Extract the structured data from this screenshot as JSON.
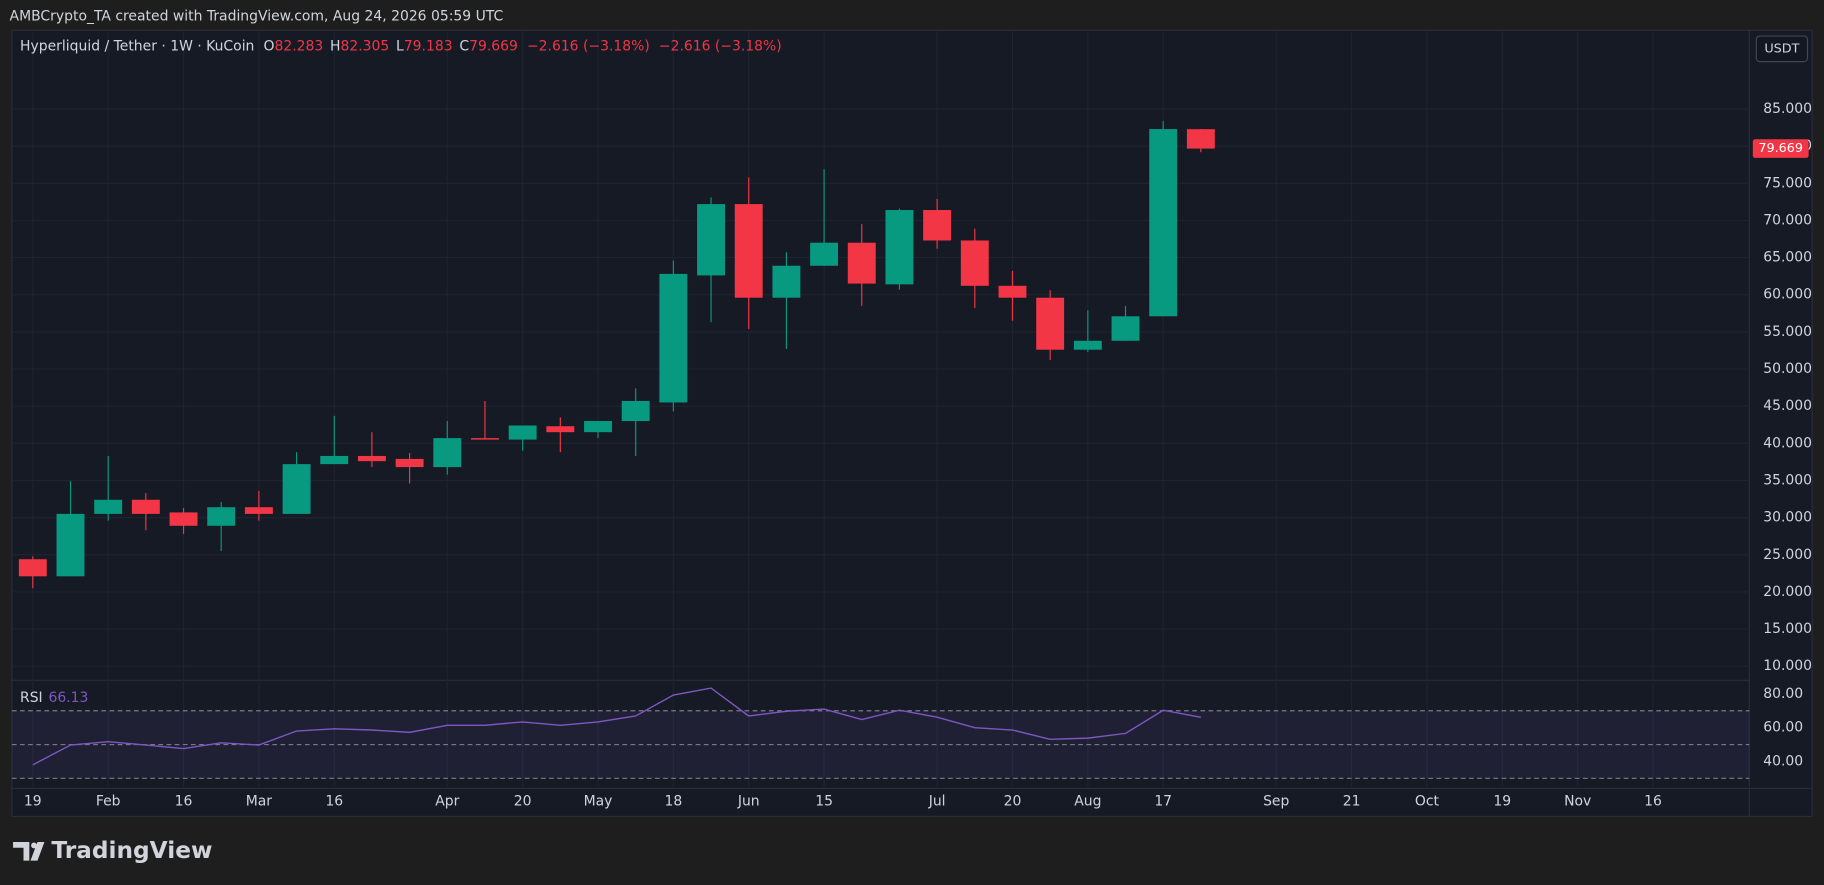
{
  "header": "AMBCrypto_TA created with TradingView.com, Aug 24, 2026 05:59 UTC",
  "brand": "TradingView",
  "chart_data": {
    "type": "candlestick",
    "title": "Hyperliquid / Tether · 1W · KuCoin",
    "legend_labels": [
      "O",
      "H",
      "L",
      "C"
    ],
    "change_label": "−2.616 (−3.18%)",
    "unit": "USDT",
    "up_color": "#089981",
    "down_color": "#f23645",
    "grid": true,
    "categories": [
      "19",
      null,
      "Feb",
      null,
      "16",
      null,
      "Mar",
      null,
      "16",
      null,
      null,
      "Apr",
      null,
      "20",
      null,
      "May",
      null,
      "18",
      null,
      "Jun",
      null,
      "15",
      null,
      null,
      "Jul",
      null,
      "20",
      null,
      "Aug",
      null,
      "17",
      null,
      null,
      "Sep",
      null,
      "21",
      null,
      "Oct",
      null,
      "19",
      null,
      "Nov",
      null,
      "16"
    ],
    "open": [
      24.4,
      22.1,
      30.5,
      32.4,
      30.7,
      28.9,
      31.4,
      30.5,
      37.2,
      38.3,
      37.9,
      36.8,
      40.7,
      40.5,
      42.3,
      41.5,
      43.0,
      45.5,
      62.6,
      72.2,
      59.6,
      63.9,
      67.0,
      61.4,
      71.4,
      67.3,
      61.2,
      59.6,
      52.6,
      53.8,
      57.1,
      82.283,
      null,
      null,
      null,
      null,
      null,
      null,
      null,
      null,
      null,
      null,
      null,
      null
    ],
    "high": [
      24.8,
      34.9,
      38.3,
      33.3,
      31.3,
      32.1,
      33.6,
      38.8,
      43.7,
      41.5,
      38.7,
      43.0,
      45.7,
      42.4,
      43.5,
      43.0,
      47.4,
      64.6,
      73.1,
      75.8,
      65.7,
      76.9,
      69.5,
      71.6,
      72.9,
      68.9,
      63.2,
      60.6,
      57.9,
      58.5,
      83.4,
      82.305,
      null,
      null,
      null,
      null,
      null,
      null,
      null,
      null,
      null,
      null,
      null,
      null
    ],
    "low": [
      20.5,
      22.1,
      29.6,
      28.3,
      27.8,
      25.5,
      29.6,
      30.5,
      37.2,
      36.8,
      34.6,
      35.8,
      40.5,
      39.0,
      38.8,
      40.7,
      38.3,
      44.3,
      56.3,
      55.4,
      52.7,
      63.9,
      58.5,
      60.7,
      66.2,
      58.2,
      56.5,
      51.2,
      52.3,
      53.8,
      57.1,
      79.183,
      null,
      null,
      null,
      null,
      null,
      null,
      null,
      null,
      null,
      null,
      null,
      null
    ],
    "close": [
      22.1,
      30.5,
      32.4,
      30.5,
      28.9,
      31.4,
      30.5,
      37.2,
      38.3,
      37.6,
      36.8,
      40.7,
      40.5,
      42.4,
      41.5,
      43.0,
      45.7,
      62.8,
      72.2,
      59.6,
      63.9,
      67.0,
      61.5,
      71.4,
      67.3,
      61.2,
      59.6,
      52.6,
      53.8,
      57.1,
      82.3,
      79.669,
      null,
      null,
      null,
      null,
      null,
      null,
      null,
      null,
      null,
      null,
      null,
      null
    ],
    "ylim": [
      8.1,
      95.6
    ],
    "yticks": [
      {
        "value": 10,
        "label": "10.000"
      },
      {
        "value": 15,
        "label": "15.000"
      },
      {
        "value": 20,
        "label": "20.000"
      },
      {
        "value": 25,
        "label": "25.000"
      },
      {
        "value": 30,
        "label": "30.000"
      },
      {
        "value": 35,
        "label": "35.000"
      },
      {
        "value": 40,
        "label": "40.000"
      },
      {
        "value": 45,
        "label": "45.000"
      },
      {
        "value": 50,
        "label": "50.000"
      },
      {
        "value": 55,
        "label": "55.000"
      },
      {
        "value": 60,
        "label": "60.000"
      },
      {
        "value": 65,
        "label": "65.000"
      },
      {
        "value": 70,
        "label": "70.000"
      },
      {
        "value": 75,
        "label": "75.000"
      },
      {
        "value": 80,
        "label": "80.000"
      },
      {
        "value": 85,
        "label": "85.000"
      }
    ],
    "rsi": {
      "name": "RSI",
      "color": "#7e57c2",
      "values": [
        38.0,
        49.7,
        51.7,
        49.7,
        47.6,
        51.0,
        49.7,
        58.0,
        59.3,
        58.6,
        57.2,
        61.4,
        61.4,
        63.4,
        61.4,
        63.4,
        66.9,
        79.3,
        83.4,
        66.9,
        69.7,
        71.0,
        64.8,
        70.3,
        66.2,
        60.0,
        58.6,
        53.1,
        53.8,
        56.6,
        70.3,
        66.13,
        null,
        null,
        null,
        null,
        null,
        null,
        null,
        null,
        null,
        null,
        null,
        null
      ],
      "ylim": [
        24,
        88
      ],
      "yticks": [
        {
          "value": 80,
          "label": "80.00"
        },
        {
          "value": 60,
          "label": "60.00"
        },
        {
          "value": 40,
          "label": "40.00"
        }
      ],
      "levels": [
        70,
        50,
        30
      ]
    }
  }
}
